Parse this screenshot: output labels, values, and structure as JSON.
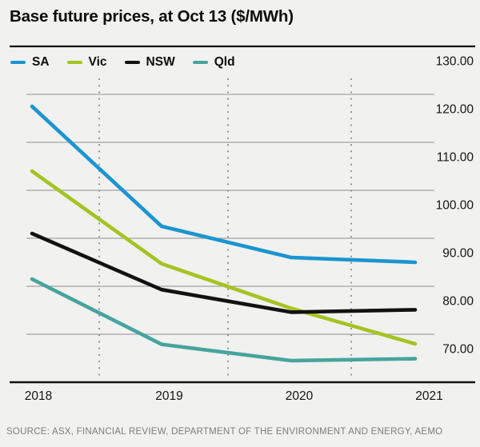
{
  "title": "Base future prices, at Oct 13 ($/MWh)",
  "source": "SOURCE: ASX, FINANCIAL REVIEW, DEPARTMENT OF THE ENVIRONMENT AND ENERGY, AEMO",
  "colors": {
    "background": "#f1f1ef",
    "gridline": "#a4a4a4",
    "dotted_guide": "#8f8f8f",
    "axis_rule": "#121212",
    "label_text": "#141414",
    "source_text": "#7c7c7c"
  },
  "chart_data": {
    "type": "line",
    "title": "Base future prices, at Oct 13 ($/MWh)",
    "xlabel": "",
    "ylabel": "$/MWh",
    "x": [
      2018,
      2019,
      2020,
      2021
    ],
    "x_tick_labels": [
      "2018",
      "2019",
      "2020",
      "2021"
    ],
    "series": [
      {
        "name": "SA",
        "color": "#1b95d0",
        "values": [
          117.5,
          92.5,
          86.0,
          85.0
        ]
      },
      {
        "name": "Vic",
        "color": "#a4c422",
        "values": [
          104.0,
          84.7,
          75.4,
          68.0
        ]
      },
      {
        "name": "NSW",
        "color": "#121212",
        "values": [
          91.0,
          79.3,
          74.6,
          75.1
        ]
      },
      {
        "name": "Qld",
        "color": "#46a49e",
        "values": [
          81.5,
          67.9,
          64.5,
          64.9
        ]
      }
    ],
    "ylim": [
      60,
      130
    ],
    "y_ticks": [
      {
        "value": 130,
        "label": "130.00"
      },
      {
        "value": 120,
        "label": "120.00"
      },
      {
        "value": 110,
        "label": "110.00"
      },
      {
        "value": 100,
        "label": "100.00"
      },
      {
        "value": 90,
        "label": "90.00"
      },
      {
        "value": 80,
        "label": "80.00"
      },
      {
        "value": 70,
        "label": "70.00"
      }
    ],
    "y_axis_side": "right",
    "grid": "horizontal-solid, vertical-dotted-at-midpoints",
    "legend_position": "top-left"
  }
}
